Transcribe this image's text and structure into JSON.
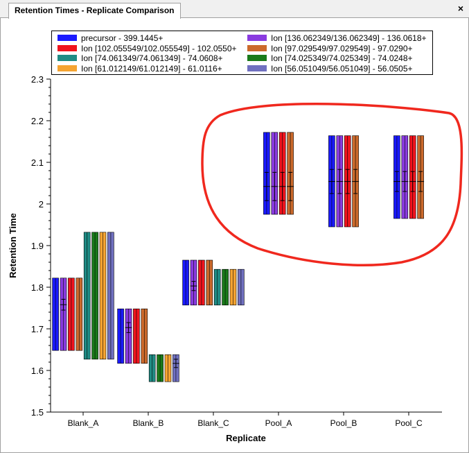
{
  "window": {
    "tab_title": "Retention Times - Replicate Comparison",
    "close_glyph": "×"
  },
  "chart_data": {
    "type": "bar",
    "subtype": "floating-range-bars-with-error-bars",
    "xlabel": "Replicate",
    "ylabel": "Retention Time",
    "ylim": [
      1.5,
      2.3
    ],
    "yticks": [
      "1.5",
      "1.6",
      "1.7",
      "1.8",
      "1.9",
      "2",
      "2.1",
      "2.2",
      "2.3"
    ],
    "categories": [
      "Blank_A",
      "Blank_B",
      "Blank_C",
      "Pool_A",
      "Pool_B",
      "Pool_C"
    ],
    "legend_placement": "top",
    "series": [
      {
        "name": "precursor - 399.1445+",
        "color": "#1a1aff"
      },
      {
        "name": "Ion [136.062349/136.062349] - 136.0618+",
        "color": "#8a3be0"
      },
      {
        "name": "Ion [102.055549/102.055549] - 102.0550+",
        "color": "#f0141e"
      },
      {
        "name": "Ion [97.029549/97.029549] - 97.0290+",
        "color": "#cc6a2c"
      },
      {
        "name": "Ion [74.061349/74.061349] - 74.0608+",
        "color": "#1f8c85"
      },
      {
        "name": "Ion [74.025349/74.025349] - 74.0248+",
        "color": "#1a7a1a"
      },
      {
        "name": "Ion [61.012149/61.012149] - 61.0116+",
        "color": "#f5a431"
      },
      {
        "name": "Ion [56.051049/56.051049] - 56.0505+",
        "color": "#7070c0"
      }
    ],
    "groups": [
      {
        "category": "Blank_A",
        "bars": [
          {
            "series": 0,
            "low": 1.648,
            "high": 1.822
          },
          {
            "series": 1,
            "low": 1.648,
            "high": 1.822
          },
          {
            "series": 2,
            "low": 1.648,
            "high": 1.822
          },
          {
            "series": 3,
            "low": 1.648,
            "high": 1.822
          },
          {
            "series": 4,
            "low": 1.627,
            "high": 1.932
          },
          {
            "series": 5,
            "low": 1.627,
            "high": 1.932
          },
          {
            "series": 6,
            "low": 1.627,
            "high": 1.932
          },
          {
            "series": 7,
            "low": 1.627,
            "high": 1.932
          }
        ],
        "errors": [
          {
            "bar": 1,
            "mean": 1.758,
            "err": 0.013
          }
        ]
      },
      {
        "category": "Blank_B",
        "bars": [
          {
            "series": 0,
            "low": 1.617,
            "high": 1.748
          },
          {
            "series": 1,
            "low": 1.617,
            "high": 1.748
          },
          {
            "series": 2,
            "low": 1.617,
            "high": 1.748
          },
          {
            "series": 3,
            "low": 1.617,
            "high": 1.748
          },
          {
            "series": 4,
            "low": 1.573,
            "high": 1.638
          },
          {
            "series": 5,
            "low": 1.573,
            "high": 1.638
          },
          {
            "series": 6,
            "low": 1.573,
            "high": 1.638
          },
          {
            "series": 7,
            "low": 1.573,
            "high": 1.638
          }
        ],
        "errors": [
          {
            "bar": 1,
            "mean": 1.703,
            "err": 0.012
          },
          {
            "bar": 7,
            "mean": 1.617,
            "err": 0.01
          }
        ]
      },
      {
        "category": "Blank_C",
        "bars": [
          {
            "series": 0,
            "low": 1.757,
            "high": 1.865
          },
          {
            "series": 1,
            "low": 1.757,
            "high": 1.865
          },
          {
            "series": 2,
            "low": 1.757,
            "high": 1.865
          },
          {
            "series": 3,
            "low": 1.757,
            "high": 1.865
          },
          {
            "series": 4,
            "low": 1.757,
            "high": 1.843
          },
          {
            "series": 5,
            "low": 1.757,
            "high": 1.843
          },
          {
            "series": 6,
            "low": 1.757,
            "high": 1.843
          },
          {
            "series": 7,
            "low": 1.757,
            "high": 1.843
          }
        ],
        "errors": [
          {
            "bar": 1,
            "mean": 1.803,
            "err": 0.011
          }
        ]
      },
      {
        "category": "Pool_A",
        "bars": [
          {
            "series": 0,
            "low": 1.975,
            "high": 2.172
          },
          {
            "series": 1,
            "low": 1.975,
            "high": 2.172
          },
          {
            "series": 2,
            "low": 1.975,
            "high": 2.172
          },
          {
            "series": 3,
            "low": 1.975,
            "high": 2.172
          }
        ],
        "errors": [
          {
            "bar": 0,
            "mean": 2.042,
            "err": 0.034
          },
          {
            "bar": 1,
            "mean": 2.042,
            "err": 0.034
          },
          {
            "bar": 2,
            "mean": 2.042,
            "err": 0.034
          },
          {
            "bar": 3,
            "mean": 2.042,
            "err": 0.034
          }
        ]
      },
      {
        "category": "Pool_B",
        "bars": [
          {
            "series": 0,
            "low": 1.945,
            "high": 2.164
          },
          {
            "series": 1,
            "low": 1.945,
            "high": 2.164
          },
          {
            "series": 2,
            "low": 1.945,
            "high": 2.164
          },
          {
            "series": 3,
            "low": 1.945,
            "high": 2.164
          }
        ],
        "errors": [
          {
            "bar": 0,
            "mean": 2.054,
            "err": 0.029
          },
          {
            "bar": 1,
            "mean": 2.054,
            "err": 0.029
          },
          {
            "bar": 2,
            "mean": 2.054,
            "err": 0.029
          },
          {
            "bar": 3,
            "mean": 2.054,
            "err": 0.029
          }
        ]
      },
      {
        "category": "Pool_C",
        "bars": [
          {
            "series": 0,
            "low": 1.965,
            "high": 2.164
          },
          {
            "series": 1,
            "low": 1.965,
            "high": 2.164
          },
          {
            "series": 2,
            "low": 1.965,
            "high": 2.164
          },
          {
            "series": 3,
            "low": 1.965,
            "high": 2.164
          }
        ],
        "errors": [
          {
            "bar": 0,
            "mean": 2.054,
            "err": 0.024
          },
          {
            "bar": 1,
            "mean": 2.054,
            "err": 0.024
          },
          {
            "bar": 2,
            "mean": 2.054,
            "err": 0.024
          },
          {
            "bar": 3,
            "mean": 2.054,
            "err": 0.024
          }
        ]
      }
    ],
    "annotation": {
      "shape": "freehand-ellipse",
      "color": "#f0281e",
      "encloses": [
        "Pool_A",
        "Pool_B",
        "Pool_C"
      ]
    }
  }
}
